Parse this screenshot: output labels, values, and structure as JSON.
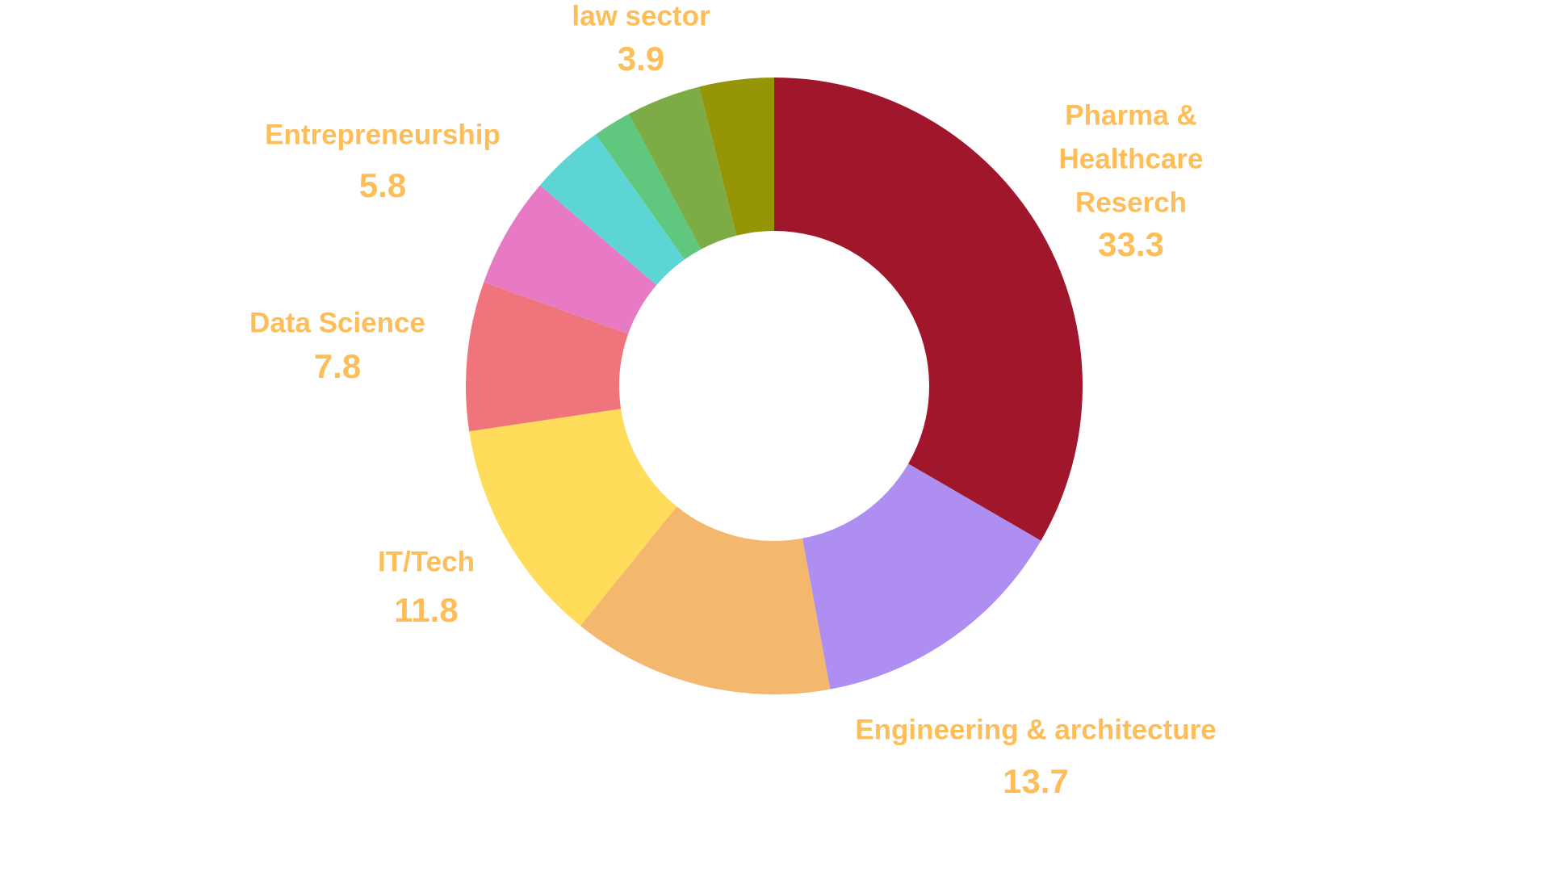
{
  "chart_data": {
    "type": "pie",
    "donut": true,
    "start": "top, clockwise",
    "slices": [
      {
        "label": [
          "Pharma &",
          "Healthcare",
          "Reserch"
        ],
        "value": 33.3,
        "value_label": "33.3",
        "color": "#A0162B"
      },
      {
        "label": [
          "Engineering & architecture"
        ],
        "value": 13.7,
        "value_label": "13.7",
        "color": "#AF8EF2"
      },
      {
        "label": [],
        "value": 13.7,
        "value_label": "",
        "color": "#F3B86E"
      },
      {
        "label": [
          "IT/Tech"
        ],
        "value": 11.8,
        "value_label": "11.8",
        "color": "#FFDC5A"
      },
      {
        "label": [
          "Data Science"
        ],
        "value": 7.8,
        "value_label": "7.8",
        "color": "#EF747C"
      },
      {
        "label": [
          "Entrepreneurship"
        ],
        "value": 5.8,
        "value_label": "5.8",
        "color": "#E879C4"
      },
      {
        "label": [],
        "value": 3.9,
        "value_label": "",
        "color": "#5DD5D4"
      },
      {
        "label": [],
        "value": 2.0,
        "value_label": "",
        "color": "#5FC87E"
      },
      {
        "label": [],
        "value": 3.9,
        "value_label": "",
        "color": "#7DAC46"
      },
      {
        "label": [
          "law sector"
        ],
        "value": 3.9,
        "value_label": "3.9",
        "color": "#969407"
      }
    ],
    "label_color": "#FDBE5A",
    "legend": "none"
  }
}
